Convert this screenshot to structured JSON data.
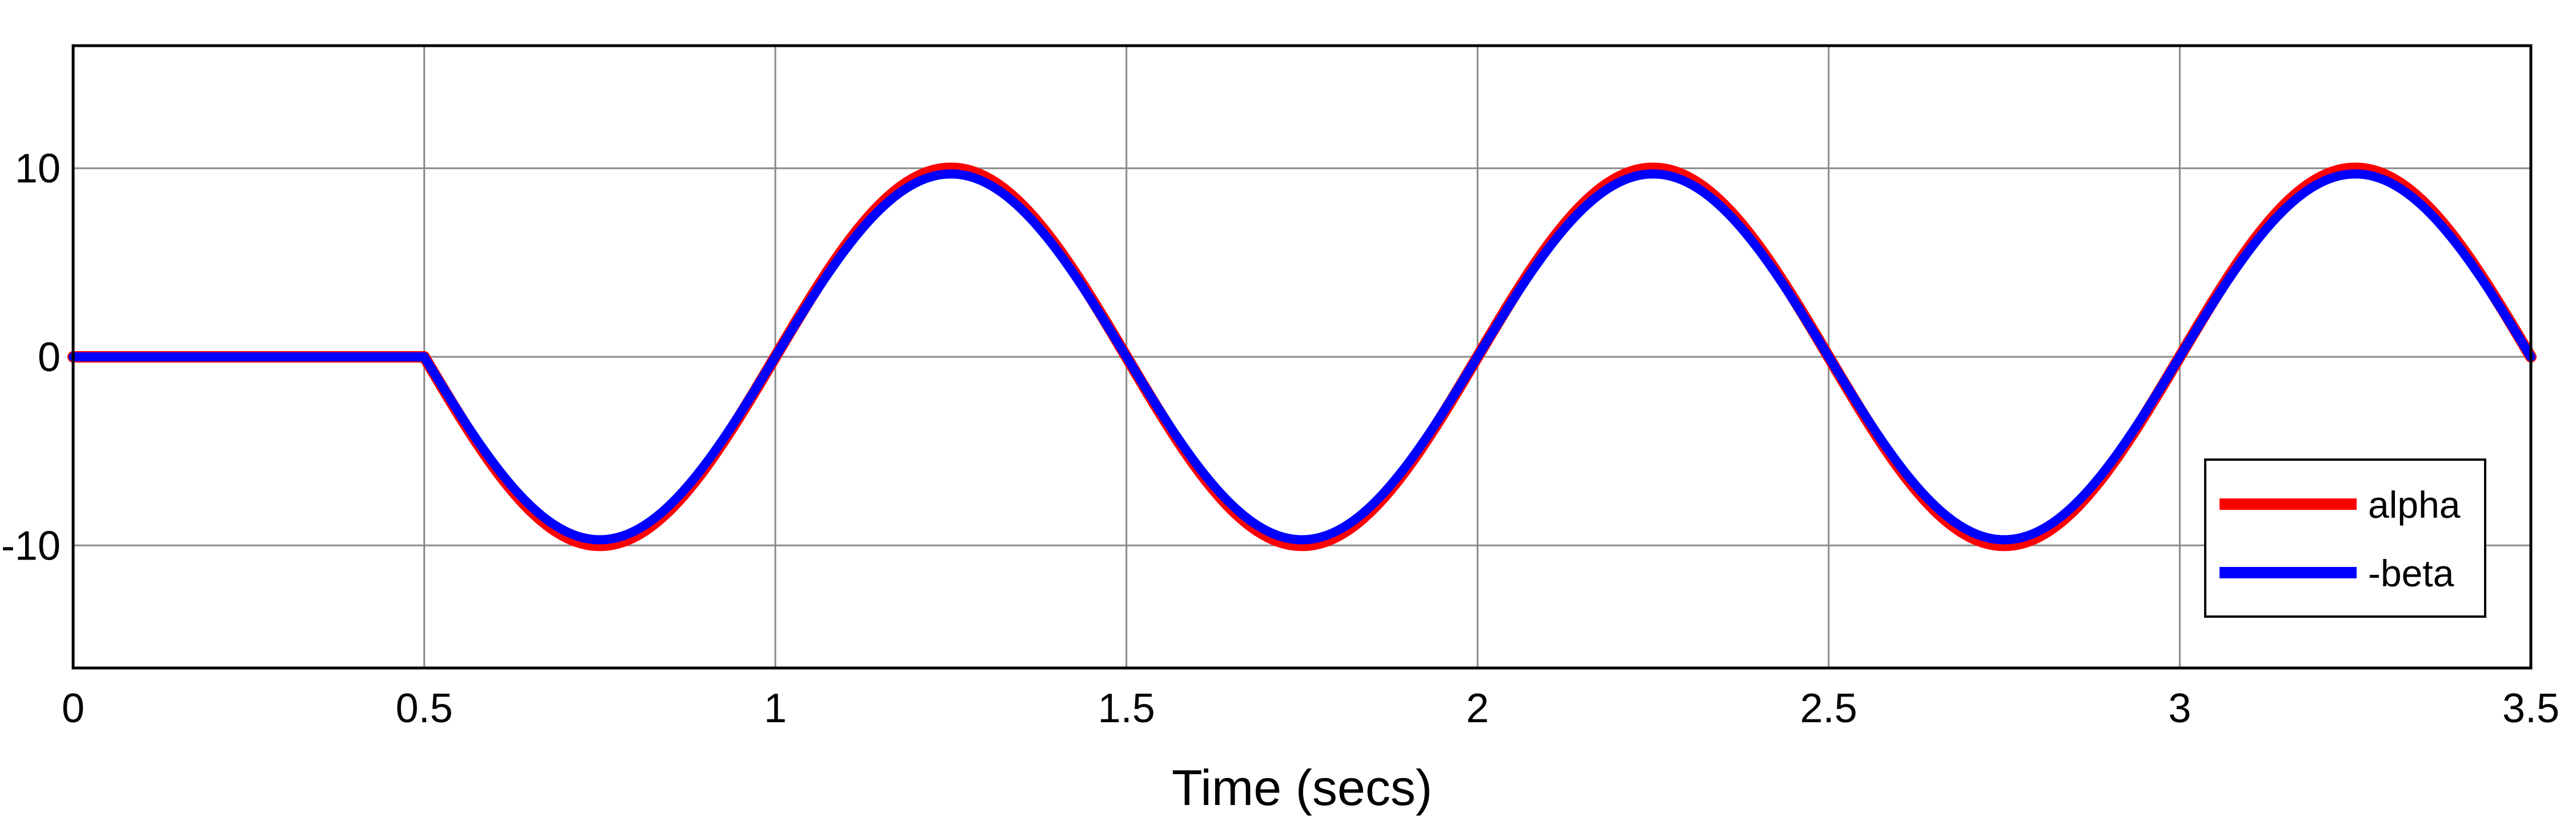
{
  "chart_data": {
    "type": "line",
    "title": "",
    "xlabel": "Time (secs)",
    "ylabel": "",
    "xlim": [
      0,
      3.5
    ],
    "ylim": [
      -16.5,
      16.5
    ],
    "x_ticks": [
      0,
      0.5,
      1,
      1.5,
      2,
      2.5,
      3,
      3.5
    ],
    "x_tick_labels": [
      "0",
      "0.5",
      "1",
      "1.5",
      "2",
      "2.5",
      "3",
      "3.5"
    ],
    "y_ticks": [
      10,
      0,
      -10
    ],
    "y_tick_labels": [
      "10",
      "0",
      "-10"
    ],
    "grid": true,
    "legend_position": "bottom-right",
    "series": [
      {
        "name": "alpha",
        "color": "#ff0000",
        "x": [
          0,
          0.5,
          0.75,
          1.0,
          1.25,
          1.5,
          1.75,
          2.0,
          2.25,
          2.5,
          2.75,
          3.0,
          3.25,
          3.5
        ],
        "y": [
          0,
          0,
          -10,
          0,
          10,
          0,
          -10,
          0,
          10,
          0,
          -10,
          0,
          10,
          0
        ]
      },
      {
        "name": "-beta",
        "color": "#0000ff",
        "x": [
          0,
          0.5,
          0.75,
          1.0,
          1.25,
          1.5,
          1.75,
          2.0,
          2.25,
          2.5,
          2.75,
          3.0,
          3.25,
          3.5
        ],
        "y": [
          0,
          0,
          -9.7,
          0,
          9.7,
          0,
          -9.7,
          0,
          9.7,
          0,
          -9.7,
          0,
          9.7,
          0
        ]
      }
    ]
  }
}
